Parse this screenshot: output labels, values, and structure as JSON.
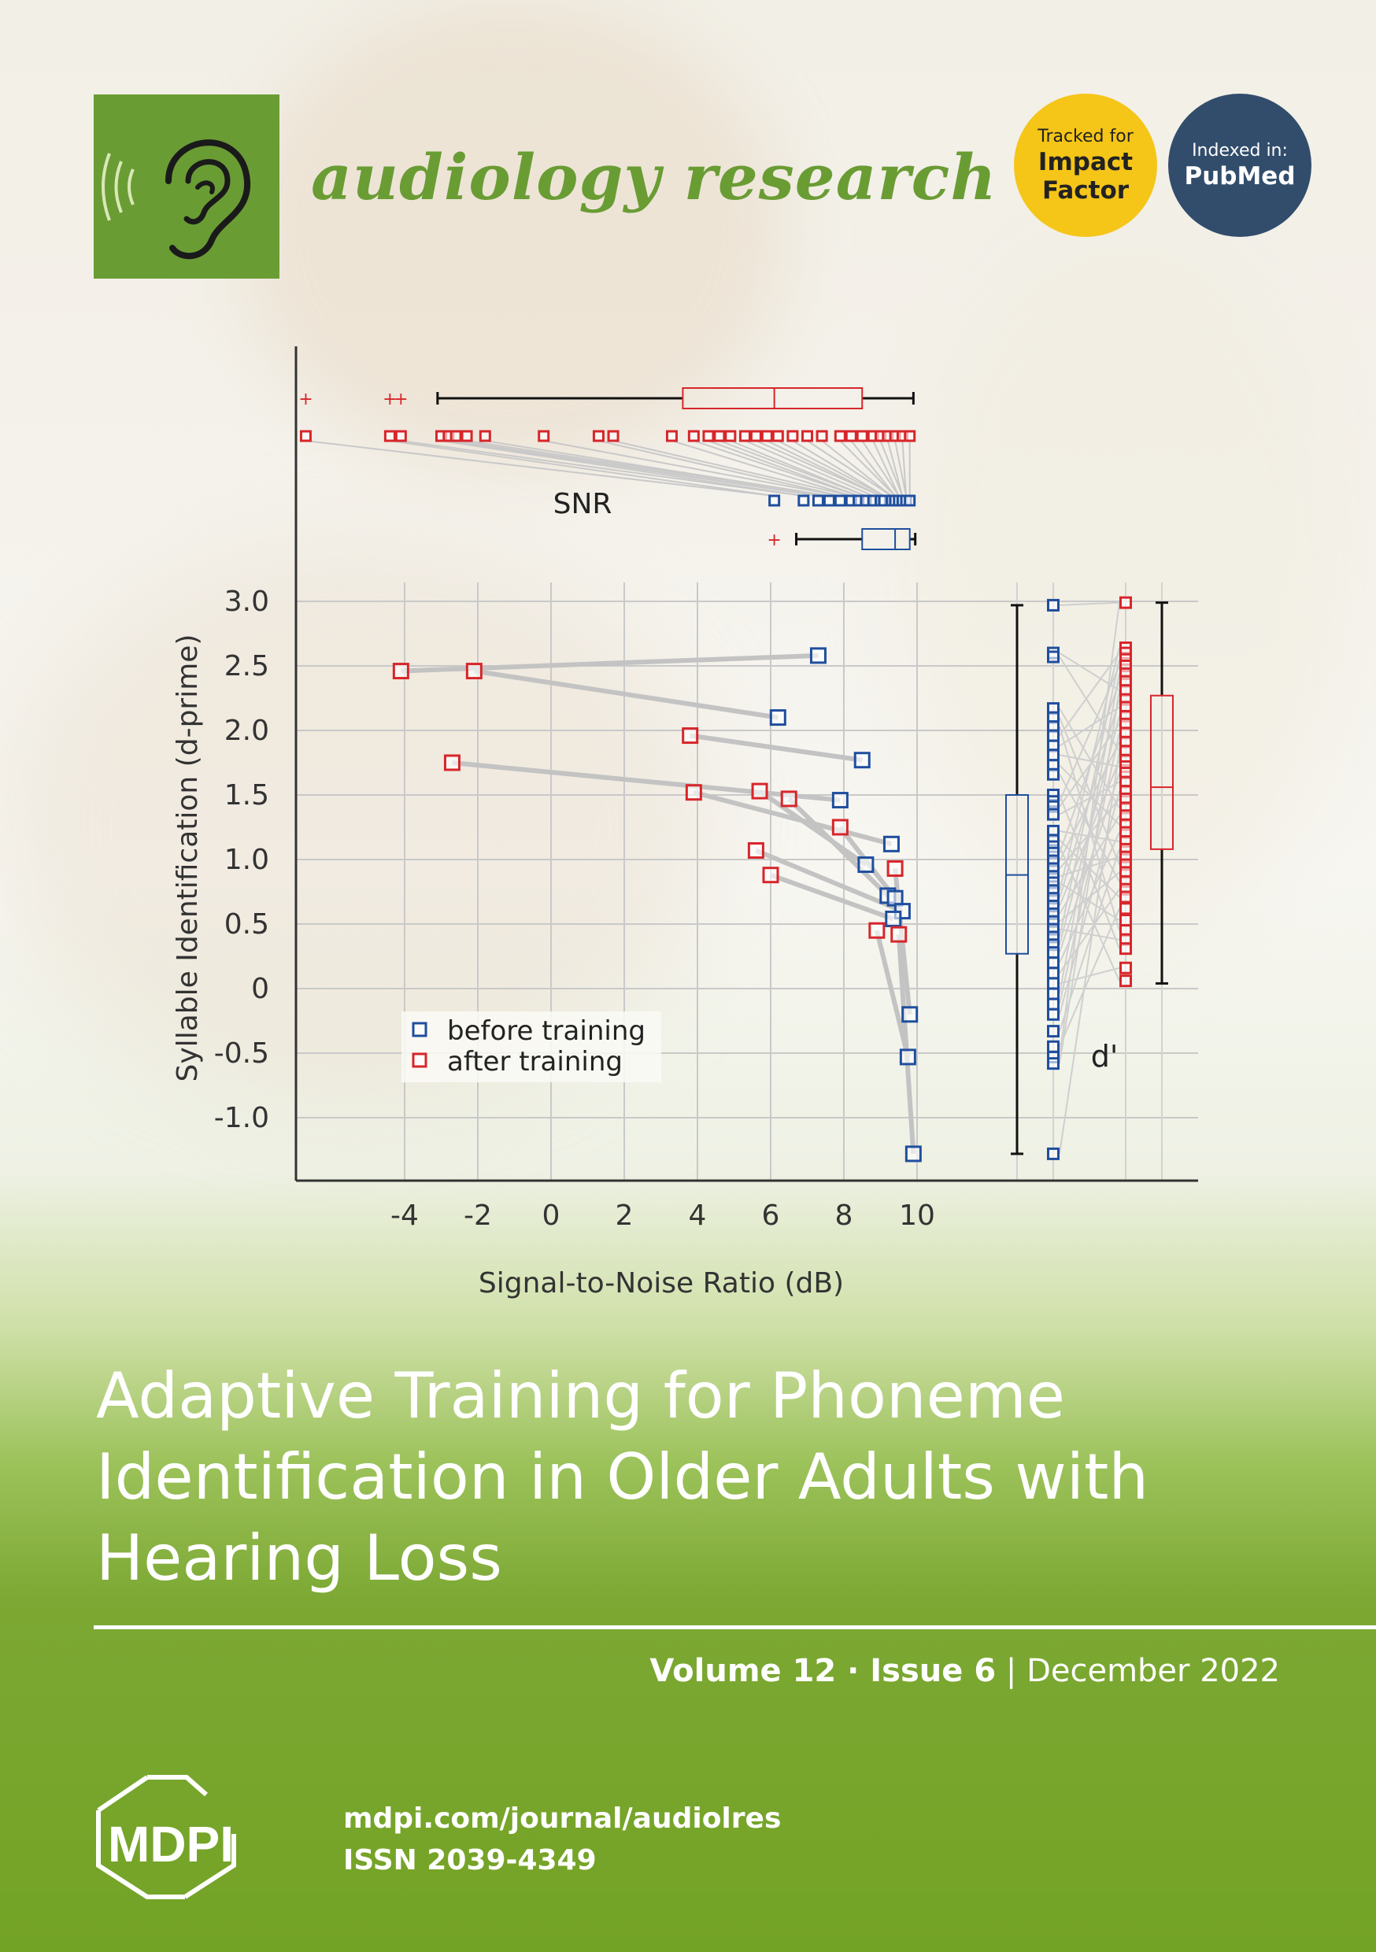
{
  "journal": {
    "name": "audiology research"
  },
  "badges": {
    "impact": {
      "line1": "Tracked for",
      "line2": "Impact",
      "line3": "Factor"
    },
    "pubmed": {
      "line1": "Indexed in:",
      "line2": "PubMed"
    }
  },
  "colors": {
    "brand_green": "#6a9c34",
    "before": "#1f4e9e",
    "after": "#d7262b",
    "impact_yellow": "#f5c518",
    "pubmed_navy": "#324d6c"
  },
  "chart_data": {
    "type": "scatter",
    "xlabel": "Signal-to-Noise Ratio (dB)",
    "ylabel": "Syllable Identification (d-prime)",
    "xlim": [
      -7,
      10
    ],
    "ylim": [
      -1.5,
      3.0
    ],
    "xticks": [
      "-4",
      "-2",
      "0",
      "2",
      "4",
      "6",
      "8",
      "10"
    ],
    "yticks": [
      "3.0",
      "2.5",
      "2.0",
      "1.5",
      "1.0",
      "0.5",
      "0",
      "-0.5",
      "-1.0"
    ],
    "legend": {
      "before": "before training",
      "after": "after training",
      "placement": "bottom-left"
    },
    "annotations": {
      "snr": "SNR",
      "dprime": "d'"
    },
    "pairs": [
      {
        "before": [
          7.3,
          2.58
        ],
        "after": [
          -4.1,
          2.46
        ]
      },
      {
        "before": [
          6.2,
          2.1
        ],
        "after": [
          -2.1,
          2.46
        ]
      },
      {
        "before": [
          8.5,
          1.77
        ],
        "after": [
          3.8,
          1.96
        ]
      },
      {
        "before": [
          7.9,
          1.46
        ],
        "after": [
          -2.7,
          1.75
        ]
      },
      {
        "before": [
          9.3,
          1.12
        ],
        "after": [
          3.9,
          1.52
        ]
      },
      {
        "before": [
          8.6,
          0.96
        ],
        "after": [
          5.7,
          1.53
        ]
      },
      {
        "before": [
          9.2,
          0.72
        ],
        "after": [
          6.5,
          1.47
        ]
      },
      {
        "before": [
          9.4,
          0.7
        ],
        "after": [
          7.9,
          1.25
        ]
      },
      {
        "before": [
          9.6,
          0.6
        ],
        "after": [
          5.6,
          1.07
        ]
      },
      {
        "before": [
          9.35,
          0.54
        ],
        "after": [
          6.0,
          0.88
        ]
      },
      {
        "before": [
          9.8,
          -0.2
        ],
        "after": [
          9.4,
          0.93
        ]
      },
      {
        "before": [
          9.75,
          -0.53
        ],
        "after": [
          8.9,
          0.45
        ]
      },
      {
        "before": [
          9.9,
          -1.28
        ],
        "after": [
          9.5,
          0.42
        ]
      }
    ],
    "snr_after": [
      -6.7,
      -4.4,
      -4.1,
      -3.0,
      -2.8,
      -2.6,
      -2.3,
      -1.8,
      -0.2,
      1.3,
      1.7,
      3.3,
      3.9,
      4.3,
      4.6,
      4.9,
      5.3,
      5.6,
      5.9,
      6.2,
      6.6,
      7.0,
      7.4,
      7.9,
      8.2,
      8.5,
      8.8,
      9.0,
      9.2,
      9.4,
      9.6,
      9.8
    ],
    "snr_before": [
      6.1,
      6.9,
      7.3,
      7.6,
      7.9,
      8.2,
      8.4,
      8.6,
      8.8,
      9.0,
      9.1,
      9.3,
      9.4,
      9.5,
      9.6,
      9.7,
      9.8
    ],
    "box_snr_after": {
      "whisker_low": -3.1,
      "q1": 3.6,
      "median": 6.1,
      "q3": 8.5,
      "whisker_high": 9.9,
      "outliers": [
        -6.7,
        -4.4,
        -4.1
      ]
    },
    "box_snr_before": {
      "whisker_low": 6.7,
      "q1": 8.5,
      "median": 9.4,
      "q3": 9.8,
      "whisker_high": 9.95,
      "outliers": [
        6.1
      ]
    },
    "dprime_before": [
      2.97,
      2.6,
      2.57,
      2.17,
      2.1,
      2.03,
      1.96,
      1.88,
      1.81,
      1.73,
      1.66,
      1.5,
      1.45,
      1.41,
      1.35,
      1.22,
      1.15,
      1.1,
      1.05,
      0.99,
      0.93,
      0.87,
      0.82,
      0.76,
      0.7,
      0.64,
      0.58,
      0.52,
      0.46,
      0.4,
      0.34,
      0.28,
      0.2,
      0.12,
      0.04,
      -0.04,
      -0.12,
      -0.2,
      -0.33,
      -0.45,
      -0.53,
      -0.58,
      -1.28
    ],
    "dprime_after": [
      2.99,
      2.64,
      2.6,
      2.55,
      2.5,
      2.44,
      2.38,
      2.31,
      2.24,
      2.18,
      2.11,
      2.05,
      1.98,
      1.91,
      1.84,
      1.77,
      1.72,
      1.67,
      1.6,
      1.53,
      1.47,
      1.4,
      1.34,
      1.27,
      1.21,
      1.14,
      1.08,
      1.02,
      0.96,
      0.9,
      0.83,
      0.77,
      0.71,
      0.62,
      0.53,
      0.45,
      0.38,
      0.31,
      0.16,
      0.06
    ],
    "box_dprime_before": {
      "whisker_low": -1.28,
      "q1": 0.27,
      "median": 0.88,
      "q3": 1.5,
      "whisker_high": 2.97
    },
    "box_dprime_after": {
      "whisker_low": 0.04,
      "q1": 1.08,
      "median": 1.56,
      "q3": 2.27,
      "whisker_high": 2.99
    }
  },
  "article": {
    "title": "Adaptive Training for Phoneme Identification in Older Adults with Hearing Loss"
  },
  "issue": {
    "volume": "Volume 12",
    "sep": " · ",
    "issue": "Issue 6",
    "bar": " | ",
    "date": "December 2022"
  },
  "footer": {
    "publisher": "MDPI",
    "url": "mdpi.com/journal/audiolres",
    "issn": "ISSN 2039-4349"
  }
}
